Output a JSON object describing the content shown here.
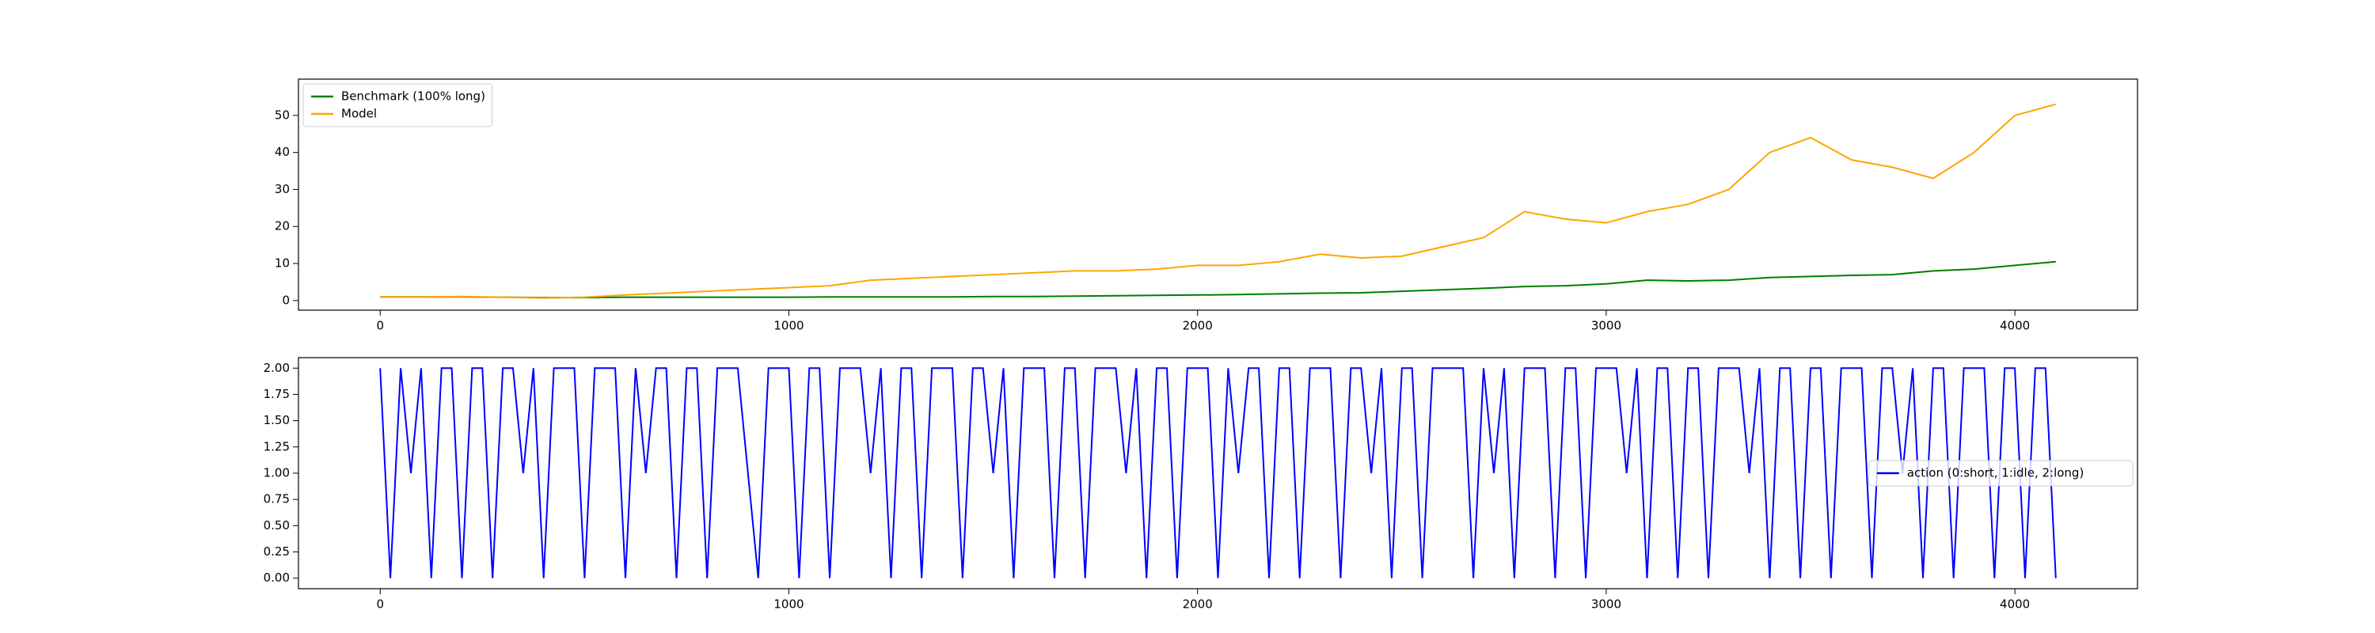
{
  "chart_data": [
    {
      "type": "line",
      "x": [
        0,
        100,
        200,
        300,
        400,
        500,
        600,
        700,
        800,
        900,
        1000,
        1100,
        1200,
        1300,
        1400,
        1500,
        1600,
        1700,
        1800,
        1900,
        2000,
        2100,
        2200,
        2300,
        2400,
        2500,
        2600,
        2700,
        2800,
        2900,
        3000,
        3100,
        3200,
        3300,
        3400,
        3500,
        3600,
        3700,
        3800,
        3900,
        4000,
        4100
      ],
      "series": [
        {
          "name": "Benchmark (100% long)",
          "color": "#008000",
          "values": [
            1,
            1,
            1,
            0.9,
            0.8,
            0.8,
            0.9,
            0.9,
            0.9,
            0.9,
            0.9,
            1,
            1,
            1,
            1,
            1.1,
            1.1,
            1.2,
            1.3,
            1.4,
            1.5,
            1.6,
            1.8,
            2,
            2.1,
            2.5,
            2.9,
            3.3,
            3.8,
            4,
            4.5,
            5.5,
            5.3,
            5.5,
            6.2,
            6.5,
            6.8,
            7,
            8,
            8.5,
            9.5,
            10.5
          ]
        },
        {
          "name": "Model",
          "color": "#ffa500",
          "values": [
            1,
            1,
            1.1,
            0.9,
            0.7,
            0.9,
            1.5,
            2,
            2.5,
            3,
            3.5,
            4,
            5.5,
            6,
            6.5,
            7,
            7.5,
            8,
            8,
            8.5,
            9.5,
            9.5,
            10.5,
            12.5,
            11.5,
            12,
            14.5,
            17,
            24,
            22,
            21,
            24,
            26,
            30,
            40,
            44,
            38,
            36,
            33,
            40,
            50,
            53
          ]
        }
      ],
      "xlim": [
        -200,
        4300
      ],
      "xticks": [
        0,
        1000,
        2000,
        3000,
        4000
      ],
      "ylim": [
        -2.6,
        59.8
      ],
      "yticks": [
        0,
        10,
        20,
        30,
        40,
        50
      ],
      "legend": "upper left"
    },
    {
      "type": "line",
      "x": [
        0,
        25,
        50,
        75,
        100,
        125,
        150,
        175,
        200,
        225,
        250,
        275,
        300,
        325,
        350,
        375,
        400,
        425,
        450,
        475,
        500,
        525,
        550,
        575,
        600,
        625,
        650,
        675,
        700,
        725,
        750,
        775,
        800,
        825,
        850,
        875,
        900,
        925,
        950,
        975,
        1000,
        1025,
        1050,
        1075,
        1100,
        1125,
        1150,
        1175,
        1200,
        1225,
        1250,
        1275,
        1300,
        1325,
        1350,
        1375,
        1400,
        1425,
        1450,
        1475,
        1500,
        1525,
        1550,
        1575,
        1600,
        1625,
        1650,
        1675,
        1700,
        1725,
        1750,
        1775,
        1800,
        1825,
        1850,
        1875,
        1900,
        1925,
        1950,
        1975,
        2000,
        2025,
        2050,
        2075,
        2100,
        2125,
        2150,
        2175,
        2200,
        2225,
        2250,
        2275,
        2300,
        2325,
        2350,
        2375,
        2400,
        2425,
        2450,
        2475,
        2500,
        2525,
        2550,
        2575,
        2600,
        2625,
        2650,
        2675,
        2700,
        2725,
        2750,
        2775,
        2800,
        2825,
        2850,
        2875,
        2900,
        2925,
        2950,
        2975,
        3000,
        3025,
        3050,
        3075,
        3100,
        3125,
        3150,
        3175,
        3200,
        3225,
        3250,
        3275,
        3300,
        3325,
        3350,
        3375,
        3400,
        3425,
        3450,
        3475,
        3500,
        3525,
        3550,
        3575,
        3600,
        3625,
        3650,
        3675,
        3700,
        3725,
        3750,
        3775,
        3800,
        3825,
        3850,
        3875,
        3900,
        3925,
        3950,
        3975,
        4000,
        4025,
        4050,
        4075,
        4100
      ],
      "series": [
        {
          "name": "action (0:short, 1:idle, 2:long)",
          "color": "#0000ff",
          "values": [
            2,
            0,
            2,
            1,
            2,
            0,
            2,
            2,
            0,
            2,
            2,
            0,
            2,
            2,
            1,
            2,
            0,
            2,
            2,
            2,
            0,
            2,
            2,
            2,
            0,
            2,
            1,
            2,
            2,
            0,
            2,
            2,
            0,
            2,
            2,
            2,
            1,
            0,
            2,
            2,
            2,
            0,
            2,
            2,
            0,
            2,
            2,
            2,
            1,
            2,
            0,
            2,
            2,
            0,
            2,
            2,
            2,
            0,
            2,
            2,
            1,
            2,
            0,
            2,
            2,
            2,
            0,
            2,
            2,
            0,
            2,
            2,
            2,
            1,
            2,
            0,
            2,
            2,
            0,
            2,
            2,
            2,
            0,
            2,
            1,
            2,
            2,
            0,
            2,
            2,
            0,
            2,
            2,
            2,
            0,
            2,
            2,
            1,
            2,
            0,
            2,
            2,
            0,
            2,
            2,
            2,
            2,
            0,
            2,
            1,
            2,
            0,
            2,
            2,
            2,
            0,
            2,
            2,
            0,
            2,
            2,
            2,
            1,
            2,
            0,
            2,
            2,
            0,
            2,
            2,
            0,
            2,
            2,
            2,
            1,
            2,
            0,
            2,
            2,
            0,
            2,
            2,
            0,
            2,
            2,
            2,
            0,
            2,
            2,
            1,
            2,
            0,
            2,
            2,
            0,
            2,
            2,
            2,
            0,
            2,
            2,
            0,
            2,
            2,
            0
          ]
        }
      ],
      "xlim": [
        -200,
        4300
      ],
      "xticks": [
        0,
        1000,
        2000,
        3000,
        4000
      ],
      "ylim": [
        -0.1,
        2.1
      ],
      "yticks": [
        {
          "value": 0,
          "label": "0.00"
        },
        {
          "value": 0.25,
          "label": "0.25"
        },
        {
          "value": 0.5,
          "label": "0.50"
        },
        {
          "value": 0.75,
          "label": "0.75"
        },
        {
          "value": 1,
          "label": "1.00"
        },
        {
          "value": 1.25,
          "label": "1.25"
        },
        {
          "value": 1.5,
          "label": "1.50"
        },
        {
          "value": 1.75,
          "label": "1.75"
        },
        {
          "value": 2,
          "label": "2.00"
        }
      ],
      "legend": "center right"
    }
  ]
}
